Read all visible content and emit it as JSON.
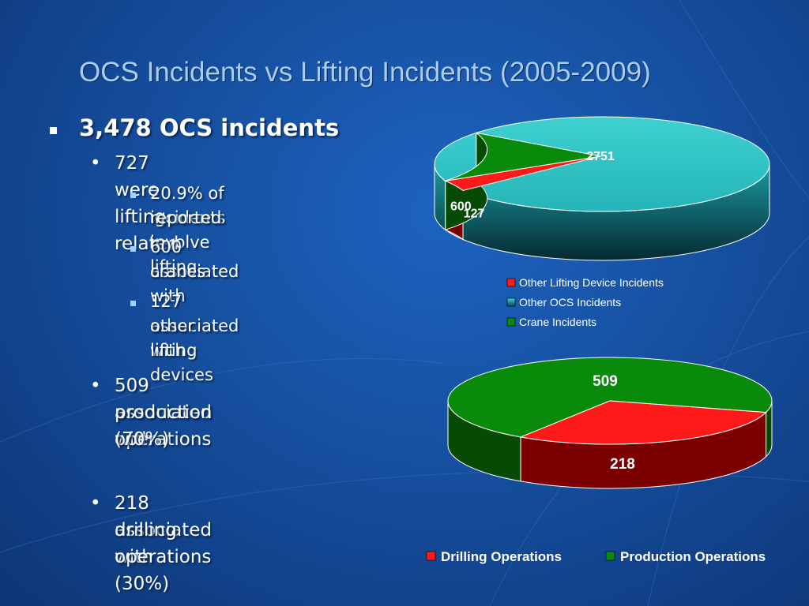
{
  "slide": {
    "title": "OCS Incidents vs Lifting Incidents (2005-2009)"
  },
  "bullets": {
    "l1": "3,478 OCS incidents",
    "l2a": "727 were lifting related",
    "l3a1": "20.9% of incidents",
    "l3a2": "reported involve lifting",
    "l3b1": "600 associated with",
    "l3b2": "cranes",
    "l3c1": "127 associated with",
    "l3c2": "other lifting devices",
    "l2b1": "509 associated with",
    "l2b2": "production operations",
    "l2b3": "(70%)",
    "l2c1": "218 associated with",
    "l2c2": "drilling operations (30%)"
  },
  "chart_data": [
    {
      "type": "pie",
      "style": "3d",
      "title": "",
      "slices": [
        {
          "label": "Other Lifting Device Incidents",
          "value": 127,
          "color": "#ff1a1a"
        },
        {
          "label": "Other OCS Incidents",
          "value": 2751,
          "color": "#2ec4c4"
        },
        {
          "label": "Crane Incidents",
          "value": 600,
          "color": "#0a8a0a"
        }
      ],
      "data_labels": [
        "127",
        "2751",
        "600"
      ],
      "legend": [
        "Other Lifting Device Incidents",
        "Other OCS Incidents",
        "Crane Incidents"
      ],
      "legend_position": "bottom"
    },
    {
      "type": "pie",
      "style": "3d",
      "title": "",
      "slices": [
        {
          "label": "Drilling Operations",
          "value": 218,
          "color": "#ff1a1a"
        },
        {
          "label": "Production Operations",
          "value": 509,
          "color": "#0a8a0a"
        }
      ],
      "data_labels": [
        "218",
        "509"
      ],
      "legend": [
        "Drilling Operations",
        "Production Operations"
      ],
      "legend_position": "bottom"
    }
  ]
}
